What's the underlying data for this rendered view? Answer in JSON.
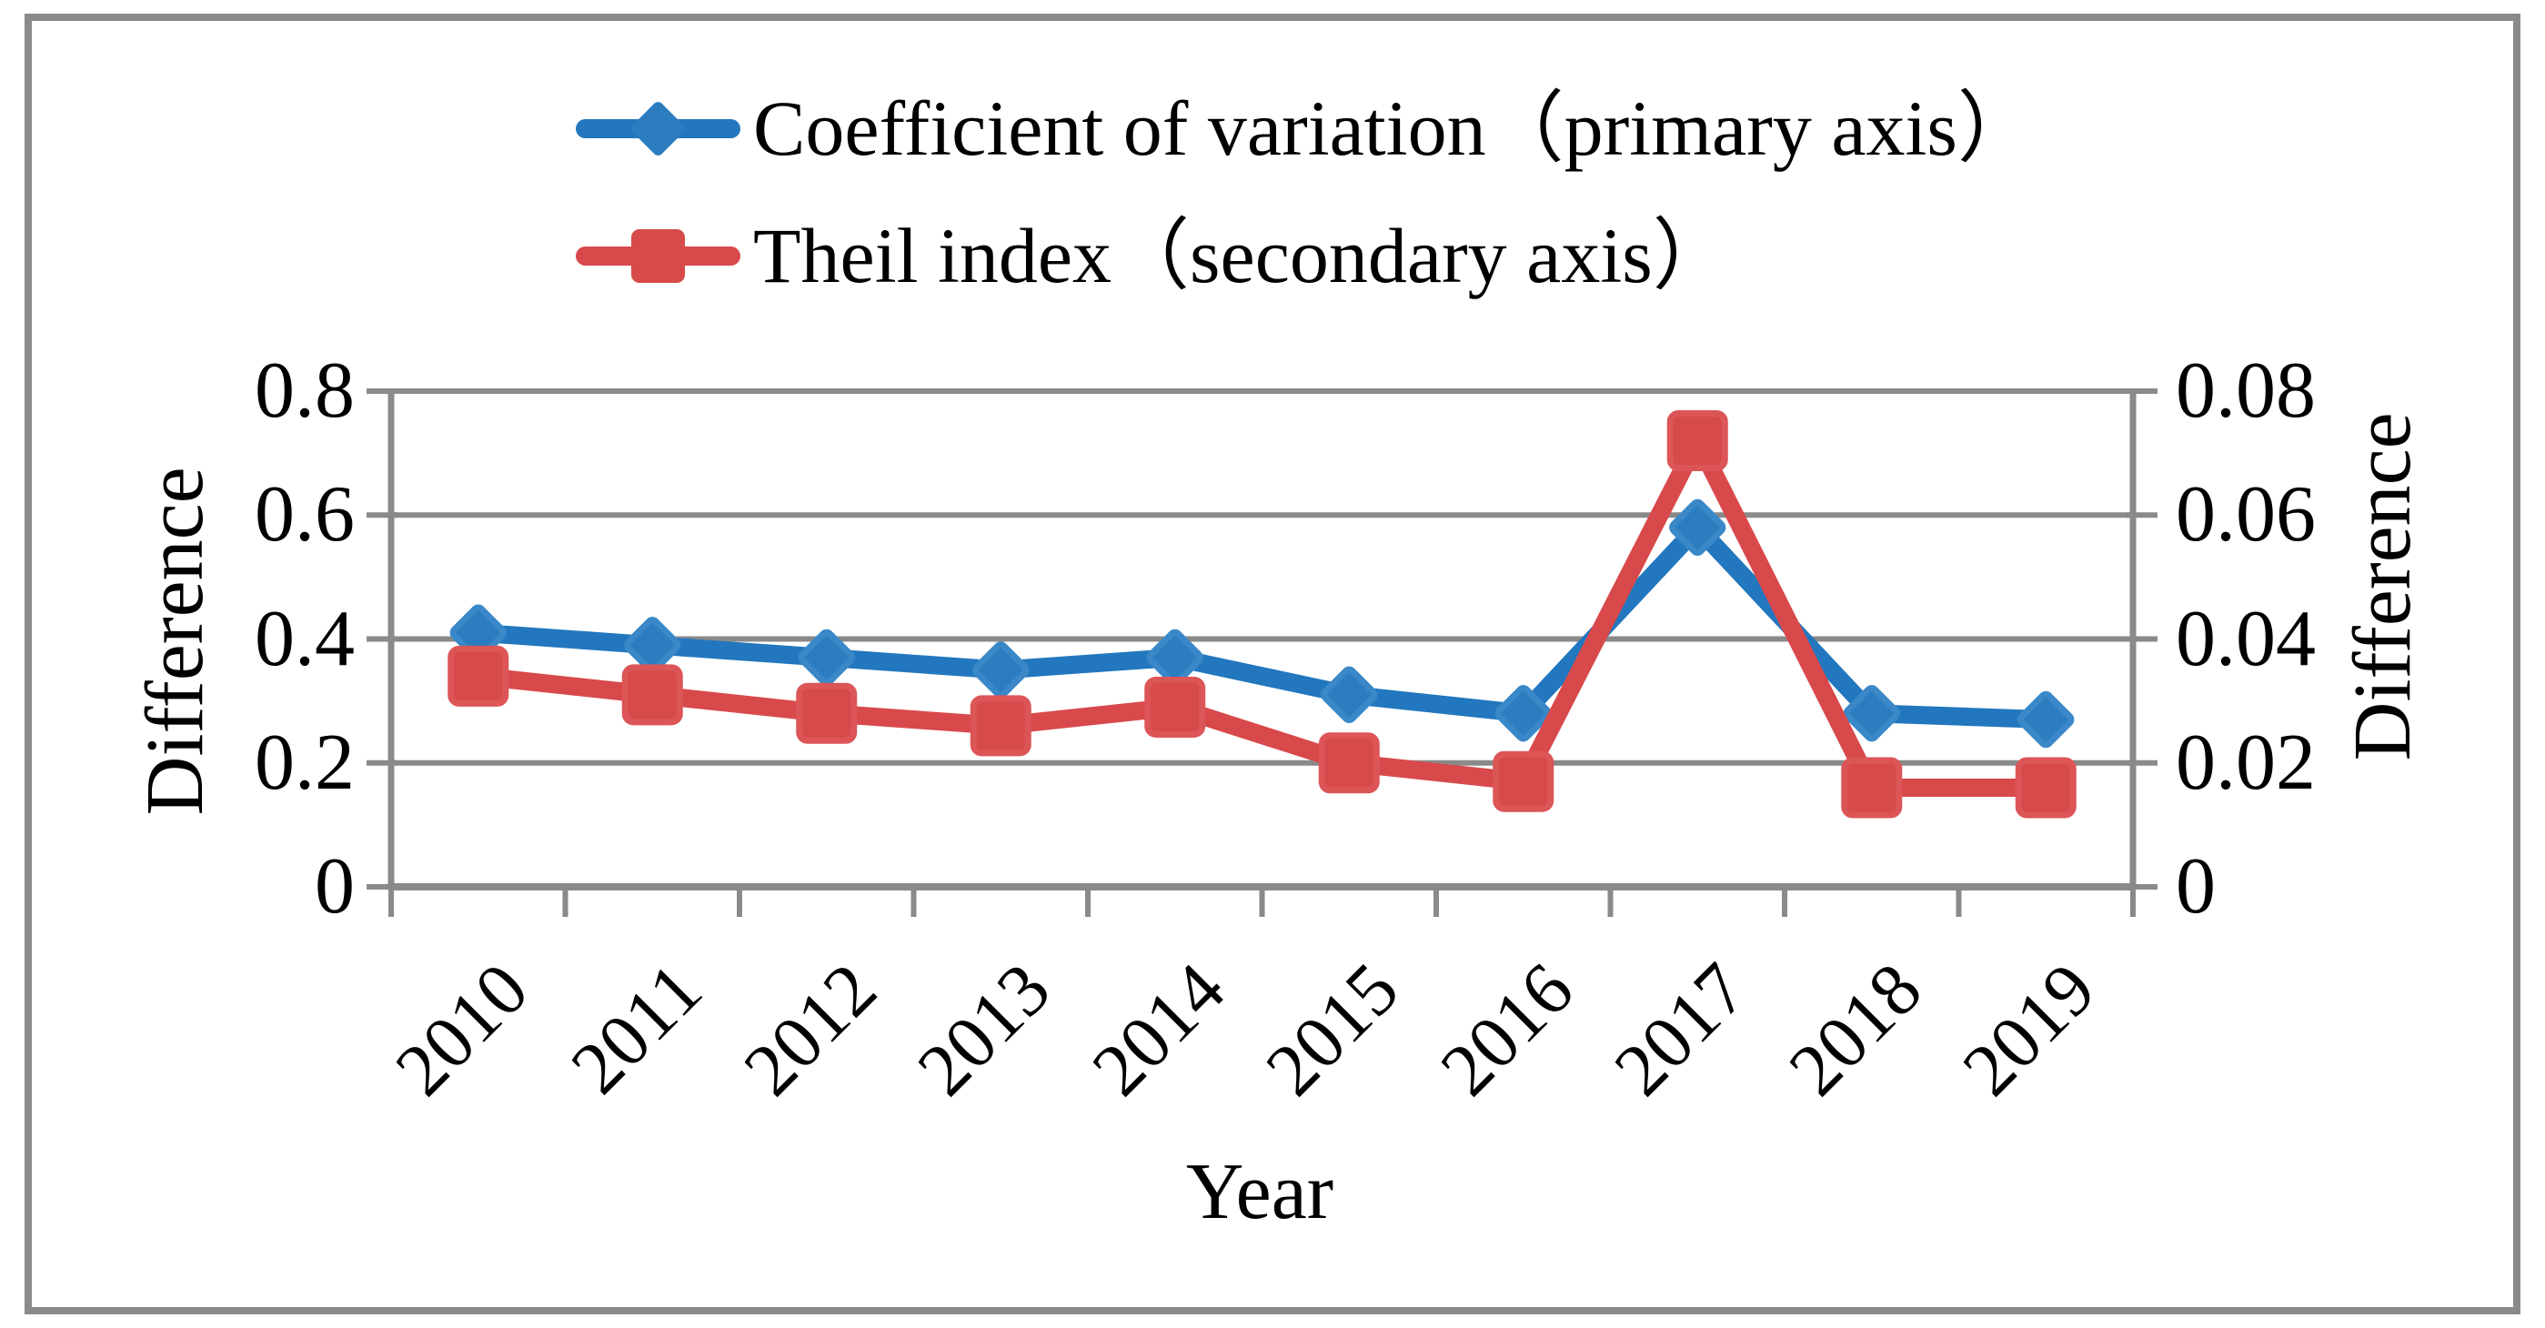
{
  "figure": {
    "background_color": "#ffffff",
    "border_color": "#8a8a8a",
    "grid_color": "#8a8a8a",
    "text_color": "#000000"
  },
  "legend": {
    "items": [
      {
        "label": "Coefficient of variation（primary axis）",
        "marker": "diamond",
        "color": "#2277be",
        "marker_fill": "#2b7dc0"
      },
      {
        "label": "Theil index（secondary axis）",
        "marker": "square",
        "color": "#d8494b",
        "marker_fill": "#d64a4a"
      }
    ]
  },
  "chart_data": {
    "type": "line",
    "title": "",
    "xlabel": "Year",
    "ylabel_left": "Difference",
    "ylabel_right": "Difference",
    "categories": [
      "2010",
      "2011",
      "2012",
      "2013",
      "2014",
      "2015",
      "2016",
      "2017",
      "2018",
      "2019"
    ],
    "series": [
      {
        "name": "Coefficient of variation",
        "axis": "primary",
        "marker": "diamond",
        "color": "#2277be",
        "marker_fill": "#2b7dc0",
        "marker_edge": "#3a88c8",
        "values": [
          0.41,
          0.39,
          0.37,
          0.35,
          0.37,
          0.31,
          0.28,
          0.58,
          0.28,
          0.27
        ]
      },
      {
        "name": "Theil index",
        "axis": "secondary",
        "marker": "square",
        "color": "#d8494b",
        "marker_fill": "#d64a4a",
        "marker_edge": "#dc5557",
        "values": [
          0.034,
          0.031,
          0.028,
          0.026,
          0.029,
          0.02,
          0.017,
          0.072,
          0.016,
          0.016
        ]
      }
    ],
    "y_left": {
      "min": 0,
      "max": 0.8,
      "tick_labels": [
        "0",
        "0.2",
        "0.4",
        "0.6",
        "0.8"
      ]
    },
    "y_right": {
      "min": 0,
      "max": 0.08,
      "tick_labels": [
        "0",
        "0.02",
        "0.04",
        "0.06",
        "0.08"
      ]
    },
    "grid": true,
    "legend_position": "top"
  }
}
